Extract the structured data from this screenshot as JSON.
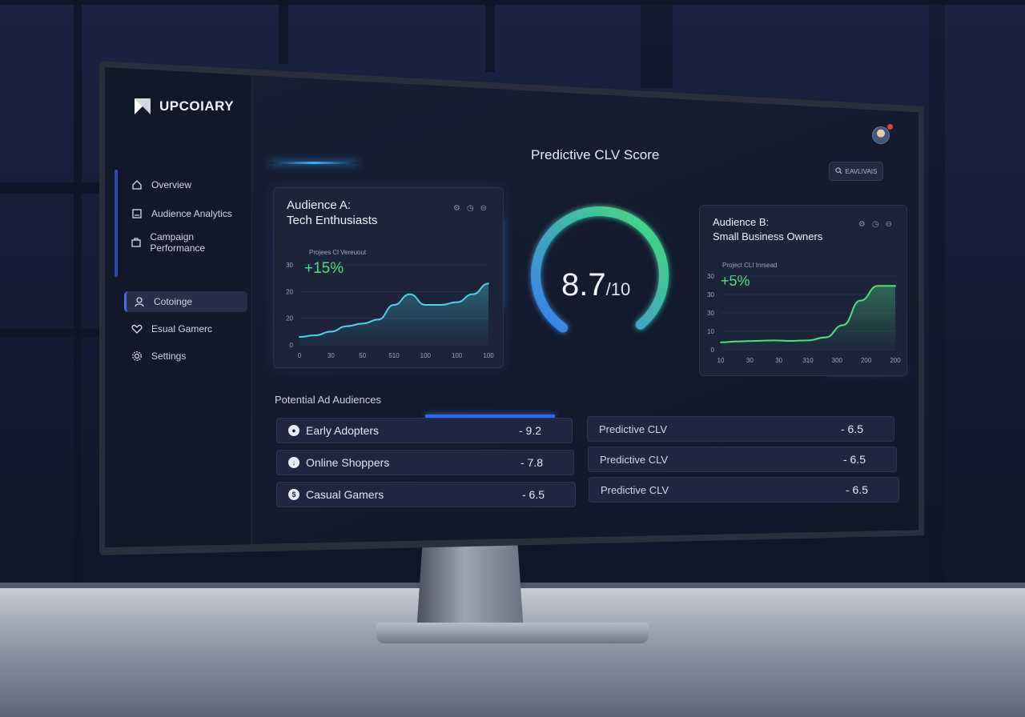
{
  "brand": {
    "name": "UPCOIARY"
  },
  "sidebar": {
    "items": [
      {
        "label": "Overview",
        "icon": "home-icon"
      },
      {
        "label": "Audience Analytics",
        "icon": "chart-doc-icon"
      },
      {
        "label": "Campaign Performance",
        "icon": "campaign-icon"
      },
      {
        "label": "Cotoinge",
        "icon": "user-icon",
        "active": true
      },
      {
        "label": "Esual Gamerc",
        "icon": "heart-icon"
      },
      {
        "label": "Settings",
        "icon": "gear-icon"
      }
    ]
  },
  "header": {
    "title": "Predictive CLV Score",
    "search_label": "EAVLIVAIS"
  },
  "gauge": {
    "value": "8.7",
    "denominator": "/10",
    "fraction": 0.87,
    "color_start": "#3a7cf0",
    "color_end": "#44e07a"
  },
  "audience_a": {
    "title_line1": "Audience A:",
    "title_line2": "Tech Enthusiasts",
    "subtitle": "Projees Cl Vereuout",
    "delta": "+15%"
  },
  "audience_b": {
    "title_line1": "Audience B:",
    "title_line2": "Small Business Owners",
    "subtitle": "Project CLI Inrsead",
    "delta": "+5%"
  },
  "chart_data": [
    {
      "type": "area",
      "title": "Audience A: Tech Enthusiasts",
      "y_ticks": [
        "30",
        "20",
        "20",
        "0"
      ],
      "x_ticks": [
        "0",
        "30",
        "50",
        "510",
        "100",
        "100",
        "100"
      ],
      "x": [
        0,
        1,
        2,
        3,
        4,
        5,
        6,
        7,
        8,
        9,
        10,
        11,
        12
      ],
      "values": [
        3,
        3.6,
        5,
        7,
        8,
        9.5,
        15,
        19,
        15,
        15,
        16,
        19,
        23
      ],
      "ylim": [
        0,
        30
      ],
      "color": "#4ad4e8"
    },
    {
      "type": "area",
      "title": "Audience B: Small Business Owners",
      "y_ticks": [
        "30",
        "30",
        "30",
        "10",
        "0"
      ],
      "x_ticks": [
        "10",
        "30",
        "30",
        "310",
        "300",
        "200",
        "200"
      ],
      "x": [
        0,
        1,
        2,
        3,
        4,
        5,
        6,
        7,
        8,
        9,
        10
      ],
      "values": [
        3,
        3.4,
        3.6,
        3.8,
        3.6,
        3.8,
        5,
        10,
        20,
        26,
        26
      ],
      "ylim": [
        0,
        30
      ],
      "color": "#52e07e"
    }
  ],
  "audiences": {
    "title": "Potential Ad Audiences",
    "left": [
      {
        "label": "Early Adopters",
        "value": "- 9.2",
        "icon": "user-icon"
      },
      {
        "label": "Online Shoppers",
        "value": "- 7.8",
        "icon": "download-icon"
      },
      {
        "label": "Casual Gamers",
        "value": "- 6.5",
        "icon": "dollar-icon"
      }
    ],
    "right": [
      {
        "label": "Predictive CLV",
        "value": "- 6.5"
      },
      {
        "label": "Predictive CLV",
        "value": "- 6.5"
      },
      {
        "label": "Predictive CLV",
        "value": "- 6.5"
      }
    ]
  }
}
